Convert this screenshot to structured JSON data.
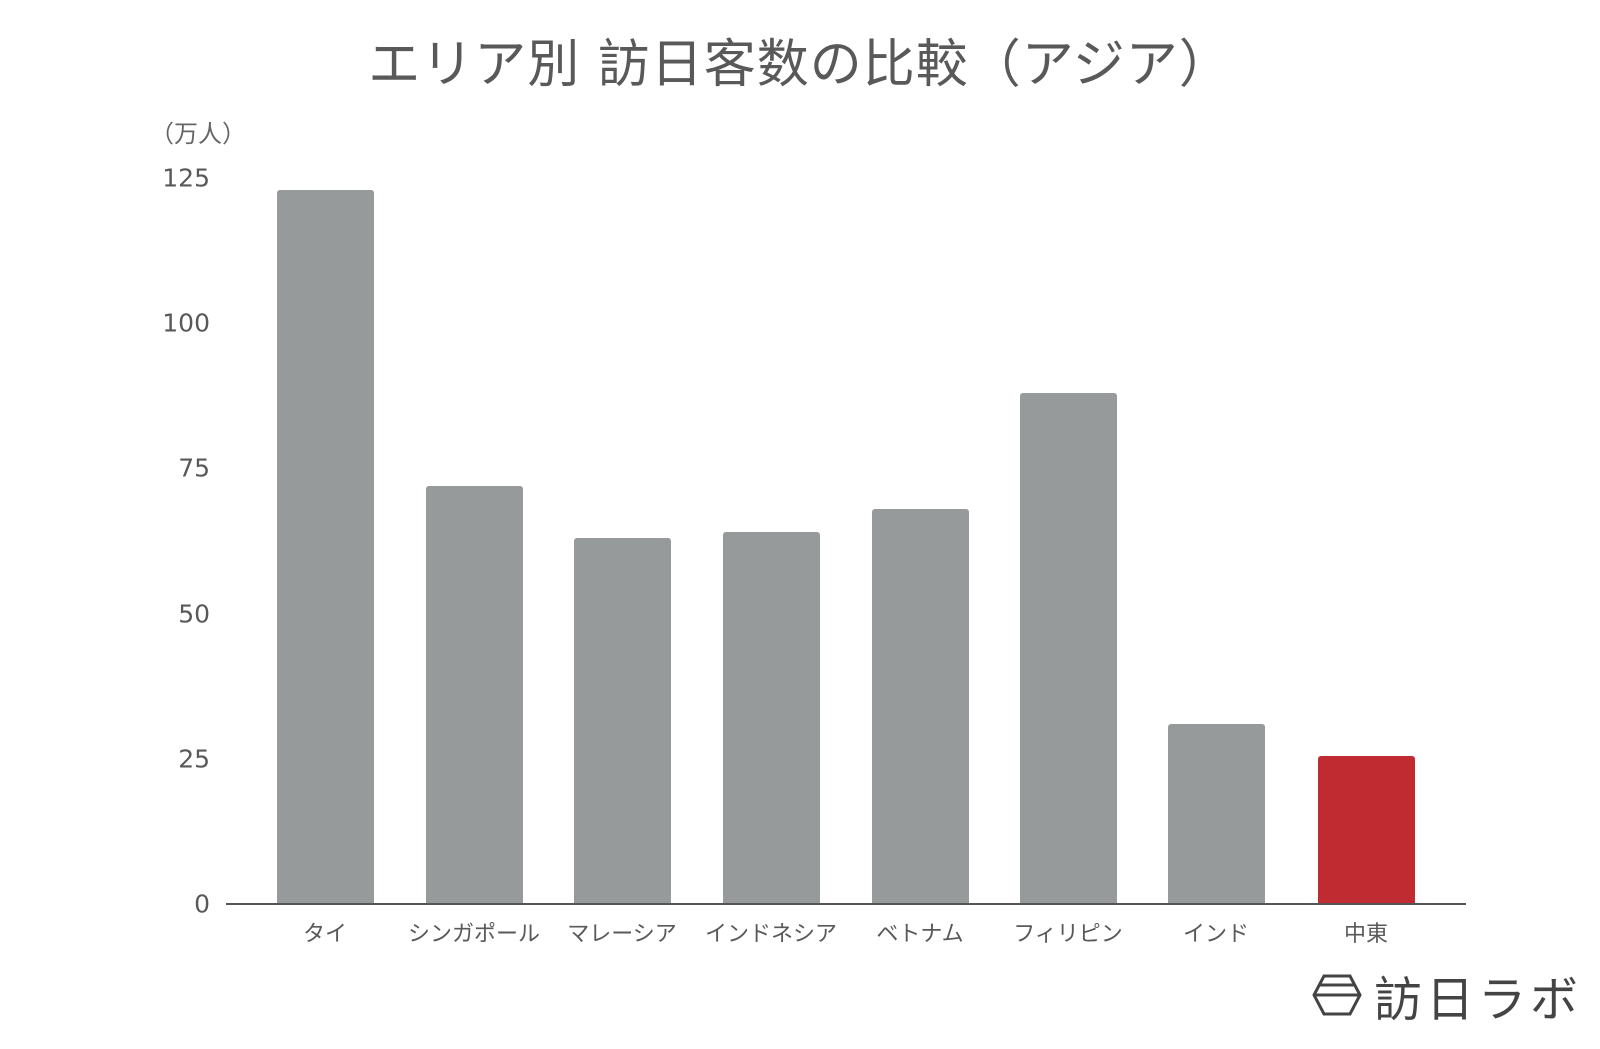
{
  "chart_data": {
    "type": "bar",
    "title": "エリア別 訪日客数の比較（アジア）",
    "xlabel": "",
    "ylabel": "（万人）",
    "ylim": [
      0,
      125
    ],
    "yticks": [
      0,
      25,
      50,
      75,
      100,
      125
    ],
    "grid": false,
    "legend": null,
    "categories": [
      "タイ",
      "シンガポール",
      "マレーシア",
      "インドネシア",
      "ベトナム",
      "フィリピン",
      "インド",
      "中東"
    ],
    "values": [
      123,
      72,
      63,
      64,
      68,
      88,
      31,
      25.5
    ],
    "colors": [
      "#969a9a",
      "#969a9a",
      "#969a9a",
      "#969a9a",
      "#969a9a",
      "#969a9a",
      "#969a9a",
      "#bf2b30"
    ],
    "highlight": "中東"
  },
  "title": "エリア別 訪日客数の比較（アジア）",
  "unit_label": "（万人）",
  "yticks": [
    "0",
    "25",
    "50",
    "75",
    "100",
    "125"
  ],
  "logo": {
    "text": "訪日ラボ"
  }
}
